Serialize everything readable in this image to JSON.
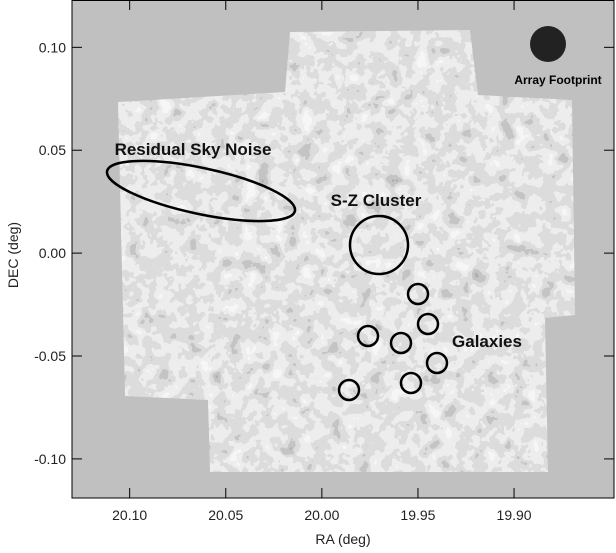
{
  "chart_data": {
    "type": "image",
    "annotations": [
      "Residual Sky Noise",
      "S-Z Cluster",
      "Galaxies",
      "Array Footprint"
    ],
    "x_label": "RA (deg)",
    "y_label": "DEC (deg)",
    "xlim": [
      20.13,
      19.848
    ],
    "ylim": [
      -0.119,
      0.123
    ],
    "xticks": [
      {
        "value": 20.1,
        "label": "20.10"
      },
      {
        "value": 20.05,
        "label": "20.05"
      },
      {
        "value": 20.0,
        "label": "20.00"
      },
      {
        "value": 19.95,
        "label": "19.95"
      },
      {
        "value": 19.9,
        "label": "19.90"
      }
    ],
    "yticks": [
      {
        "value": 0.1,
        "label": "0.10"
      },
      {
        "value": 0.05,
        "label": "0.05"
      },
      {
        "value": 0.0,
        "label": "0.00"
      },
      {
        "value": -0.05,
        "label": "-0.05"
      },
      {
        "value": -0.1,
        "label": "-0.10"
      }
    ]
  }
}
